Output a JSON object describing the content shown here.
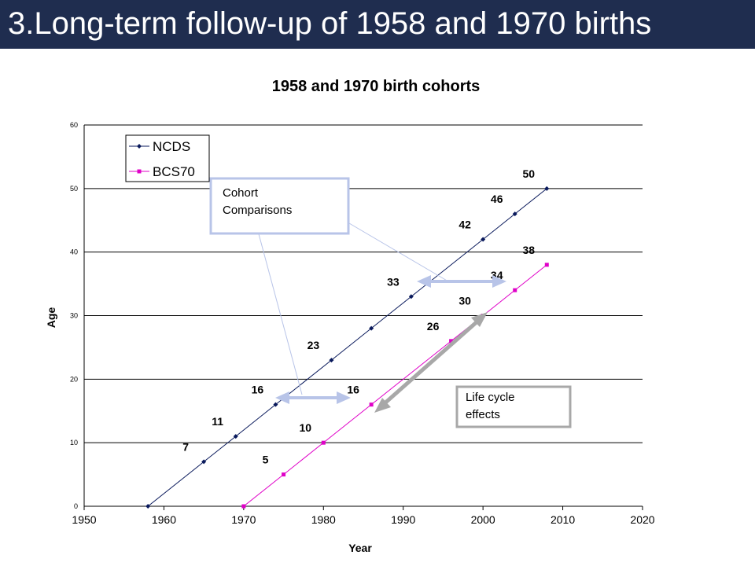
{
  "slide": {
    "title": "3.Long-term follow-up of 1958 and 1970 births"
  },
  "chart_data": {
    "type": "line",
    "title": "1958 and 1970 birth cohorts",
    "xlabel": "Year",
    "ylabel": "Age",
    "xlim": [
      1950,
      2020
    ],
    "ylim": [
      0,
      60
    ],
    "xticks": [
      1950,
      1960,
      1970,
      1980,
      1990,
      2000,
      2010,
      2020
    ],
    "yticks": [
      0,
      10,
      20,
      30,
      40,
      50,
      60
    ],
    "grid": "horizontal",
    "legend": "top-left",
    "series": [
      {
        "name": "NCDS",
        "color": "#0a1a5c",
        "marker": "diamond",
        "x": [
          1958,
          1965,
          1969,
          1974,
          1981,
          1986,
          1991,
          2000,
          2004,
          2008
        ],
        "y": [
          0,
          7,
          11,
          16,
          23,
          28,
          33,
          42,
          46,
          50
        ],
        "labels": [
          "",
          "7",
          "11",
          "16",
          "23",
          "",
          "33",
          "42",
          "46",
          "50"
        ]
      },
      {
        "name": "BCS70",
        "color": "#e000c8",
        "marker": "square",
        "x": [
          1970,
          1975,
          1980,
          1986,
          1996,
          2000,
          2004,
          2008
        ],
        "y": [
          0,
          5,
          10,
          16,
          26,
          30,
          34,
          38
        ],
        "labels": [
          "",
          "5",
          "10",
          "16",
          "26",
          "30",
          "34",
          "38"
        ]
      }
    ],
    "annotations": {
      "cohort_line1": "Cohort",
      "cohort_line2": "Comparisons",
      "life_line1": "Life cycle",
      "life_line2": "effects"
    }
  }
}
